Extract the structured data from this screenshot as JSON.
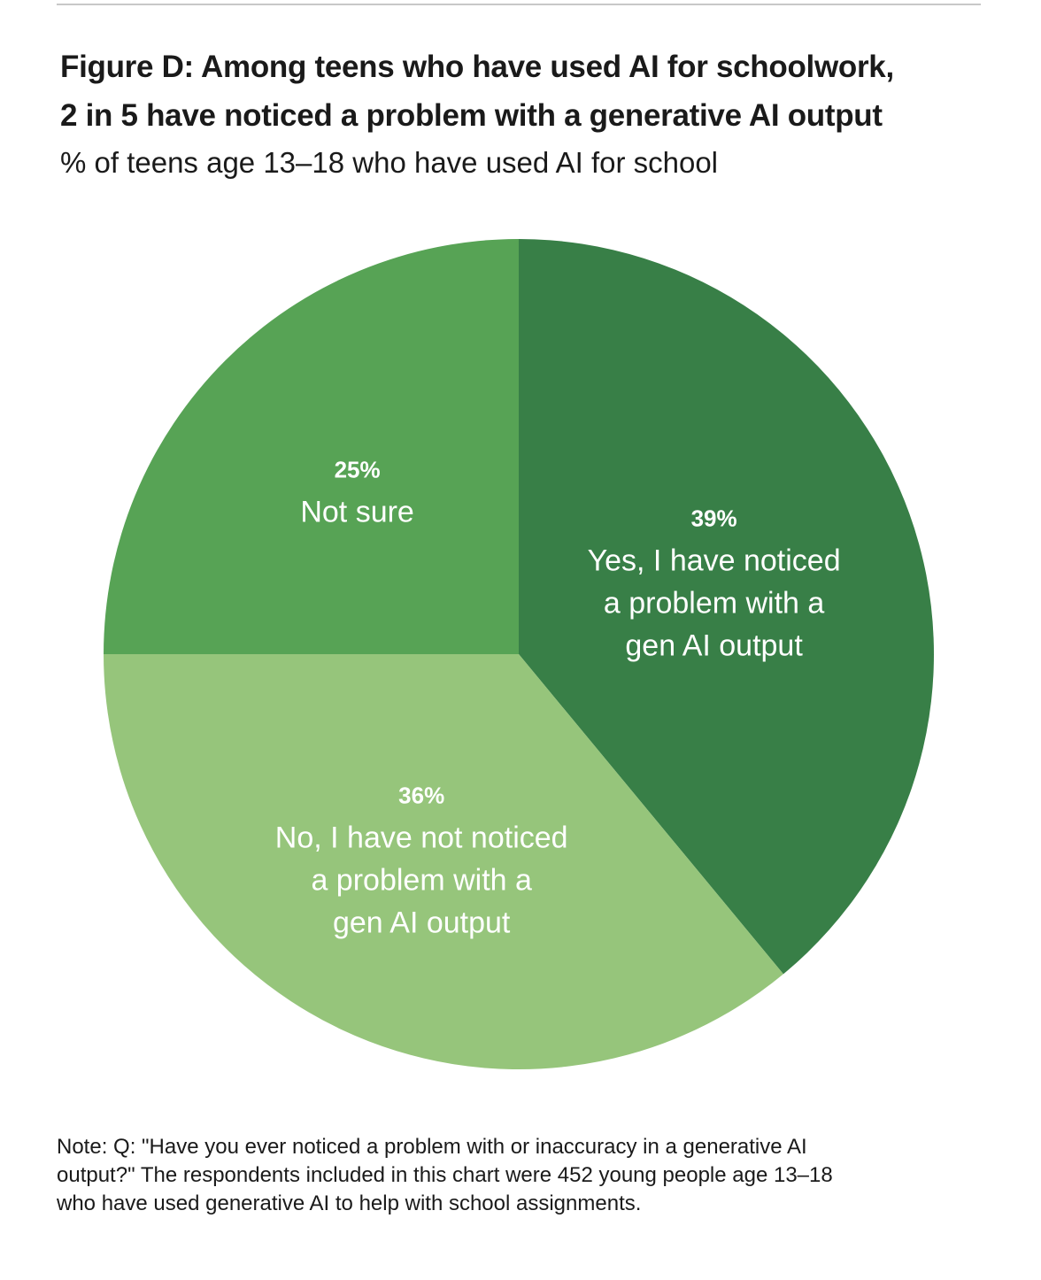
{
  "header": {
    "title_line1": "Figure D: Among teens who have used AI for schoolwork,",
    "title_line2": "2 in 5 have noticed a problem with a generative AI output",
    "subtitle": "% of teens age 13–18 who have used AI for school"
  },
  "chart_data": {
    "type": "pie",
    "title": "Figure D: Among teens who have used AI for schoolwork, 2 in 5 have noticed a problem with a generative AI output",
    "subtitle": "% of teens age 13–18 who have used AI for school",
    "slices": [
      {
        "name": "yes",
        "value": 39,
        "value_label": "39%",
        "label_lines": [
          "Yes, I have noticed",
          "a problem with a",
          "gen AI output"
        ],
        "color": "#387f47"
      },
      {
        "name": "no",
        "value": 36,
        "value_label": "36%",
        "label_lines": [
          "No, I have not noticed",
          "a problem with a",
          "gen AI output"
        ],
        "color": "#96c57b"
      },
      {
        "name": "not-sure",
        "value": 25,
        "value_label": "25%",
        "label_lines": [
          "Not sure"
        ],
        "color": "#57a355"
      }
    ]
  },
  "note": {
    "line1": "Note: Q: \"Have you ever noticed a problem with or inaccuracy in a generative AI",
    "line2": "output?\" The respondents included in this chart were 452 young people age 13–18",
    "line3": "who have used generative AI to help with school assignments."
  }
}
